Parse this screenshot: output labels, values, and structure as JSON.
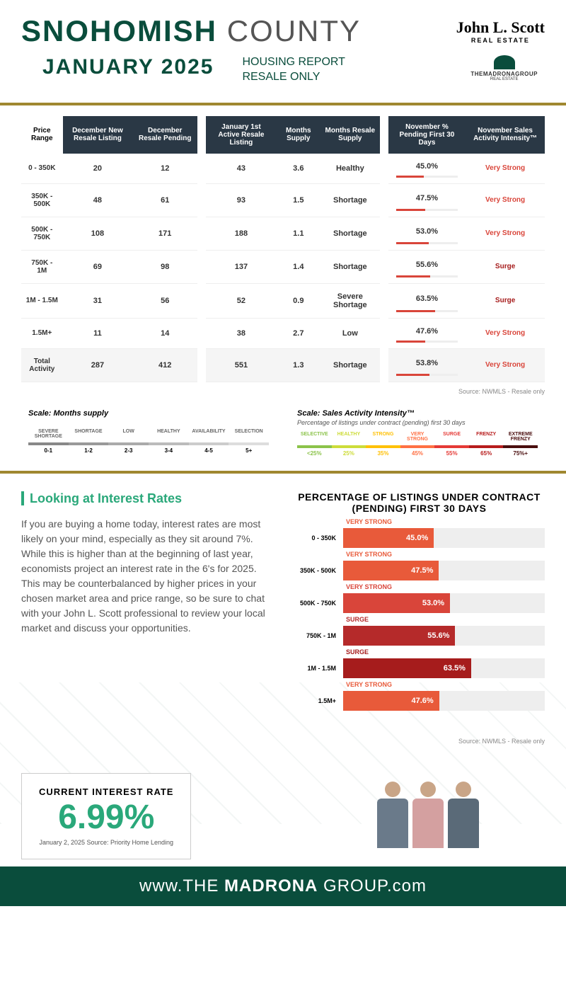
{
  "header": {
    "title_bold": "SNOHOMISH",
    "title_light": "COUNTY",
    "date": "JANUARY 2025",
    "report_line1": "HOUSING REPORT",
    "report_line2": "RESALE ONLY",
    "logo_jls": "John L. Scott",
    "logo_jls_sub": "REAL ESTATE",
    "logo_madrona": "THEMADRONAGROUP",
    "logo_madrona_sub": "REAL ESTATE"
  },
  "table": {
    "headers": [
      "Price Range",
      "December New Resale Listing",
      "December Resale Pending",
      "January 1st Active Resale Listing",
      "Months Supply",
      "Months Resale Supply",
      "November % Pending First 30 Days",
      "November Sales Activity Intensity™"
    ],
    "rows": [
      {
        "range": "0 - 350K",
        "new_listing": "20",
        "pending": "12",
        "active": "43",
        "supply": "3.6",
        "supply_label": "Healthy",
        "pct": "45.0%",
        "pct_val": 45.0,
        "intensity": "Very Strong",
        "intensity_color": "#d9453a"
      },
      {
        "range": "350K - 500K",
        "new_listing": "48",
        "pending": "61",
        "active": "93",
        "supply": "1.5",
        "supply_label": "Shortage",
        "pct": "47.5%",
        "pct_val": 47.5,
        "intensity": "Very Strong",
        "intensity_color": "#d9453a"
      },
      {
        "range": "500K - 750K",
        "new_listing": "108",
        "pending": "171",
        "active": "188",
        "supply": "1.1",
        "supply_label": "Shortage",
        "pct": "53.0%",
        "pct_val": 53.0,
        "intensity": "Very Strong",
        "intensity_color": "#d9453a"
      },
      {
        "range": "750K - 1M",
        "new_listing": "69",
        "pending": "98",
        "active": "137",
        "supply": "1.4",
        "supply_label": "Shortage",
        "pct": "55.6%",
        "pct_val": 55.6,
        "intensity": "Surge",
        "intensity_color": "#a61c1c"
      },
      {
        "range": "1M - 1.5M",
        "new_listing": "31",
        "pending": "56",
        "active": "52",
        "supply": "0.9",
        "supply_label": "Severe Shortage",
        "pct": "63.5%",
        "pct_val": 63.5,
        "intensity": "Surge",
        "intensity_color": "#a61c1c"
      },
      {
        "range": "1.5M+",
        "new_listing": "11",
        "pending": "14",
        "active": "38",
        "supply": "2.7",
        "supply_label": "Low",
        "pct": "47.6%",
        "pct_val": 47.6,
        "intensity": "Very Strong",
        "intensity_color": "#d9453a"
      }
    ],
    "total": {
      "range": "Total Activity",
      "new_listing": "287",
      "pending": "412",
      "active": "551",
      "supply": "1.3",
      "supply_label": "Shortage",
      "pct": "53.8%",
      "pct_val": 53.8,
      "intensity": "Very Strong",
      "intensity_color": "#d9453a"
    },
    "source": "Source: NWMLS  -  Resale only"
  },
  "scale_supply": {
    "title": "Scale: Months supply",
    "labels": [
      "SEVERE SHORTAGE",
      "SHORTAGE",
      "LOW",
      "HEALTHY",
      "AVAILABILITY",
      "SELECTION"
    ],
    "colors": [
      "#888",
      "#999",
      "#aaa",
      "#bbb",
      "#ccc",
      "#ddd"
    ],
    "values": [
      "0-1",
      "1-2",
      "2-3",
      "3-4",
      "4-5",
      "5+"
    ]
  },
  "scale_intensity": {
    "title": "Scale: Sales Activity Intensity™",
    "subtitle": "Percentage of listings under contract (pending) first 30 days",
    "labels": [
      "SELECTIVE",
      "HEALTHY",
      "STRONG",
      "VERY STRONG",
      "SURGE",
      "FRENZY",
      "EXTREME FRENZY"
    ],
    "colors": [
      "#8bc34a",
      "#cddc39",
      "#ffc107",
      "#ff7043",
      "#e53935",
      "#b71c1c",
      "#4a0e0e"
    ],
    "values": [
      "<25%",
      "25%",
      "35%",
      "45%",
      "55%",
      "65%",
      "75%+"
    ],
    "value_colors": [
      "#8bc34a",
      "#cddc39",
      "#ffc107",
      "#ff7043",
      "#e53935",
      "#b71c1c",
      "#4a0e0e"
    ]
  },
  "interest": {
    "section_title": "Looking at Interest Rates",
    "body": "If you are buying a home today, interest rates are most likely on your mind, especially as they sit around 7%. While this is higher than at the beginning of last year, economists project an interest rate in the 6's for 2025. This may be counterbalanced by higher prices in your chosen market area and price range, so be sure to chat with your John L. Scott professional to review your local market and discuss your opportunities.",
    "rate_label": "CURRENT INTEREST RATE",
    "rate_value": "6.99%",
    "rate_source": "January 2, 2025 Source: Priority Home Lending"
  },
  "chart": {
    "title": "PERCENTAGE OF LISTINGS UNDER CONTRACT (PENDING) FIRST 30 DAYS",
    "bars": [
      {
        "label": "0 - 350K",
        "intensity": "VERY STRONG",
        "pct": "45.0%",
        "val": 45.0,
        "color": "#e85a3a"
      },
      {
        "label": "350K - 500K",
        "intensity": "VERY STRONG",
        "pct": "47.5%",
        "val": 47.5,
        "color": "#e85a3a"
      },
      {
        "label": "500K - 750K",
        "intensity": "VERY STRONG",
        "pct": "53.0%",
        "val": 53.0,
        "color": "#d9453a"
      },
      {
        "label": "750K - 1M",
        "intensity": "SURGE",
        "pct": "55.6%",
        "val": 55.6,
        "color": "#b52a2a"
      },
      {
        "label": "1M - 1.5M",
        "intensity": "SURGE",
        "pct": "63.5%",
        "val": 63.5,
        "color": "#a61c1c"
      },
      {
        "label": "1.5M+",
        "intensity": "VERY STRONG",
        "pct": "47.6%",
        "val": 47.6,
        "color": "#e85a3a"
      }
    ],
    "source": "Source: NWMLS - Resale only"
  },
  "footer": {
    "prefix": "www.",
    "the": "THE ",
    "bold": "MADRONA",
    "suffix": " GROUP",
    "domain": ".com"
  },
  "people_colors": [
    "#6a7a8a",
    "#d4a0a0",
    "#5a6a78"
  ]
}
